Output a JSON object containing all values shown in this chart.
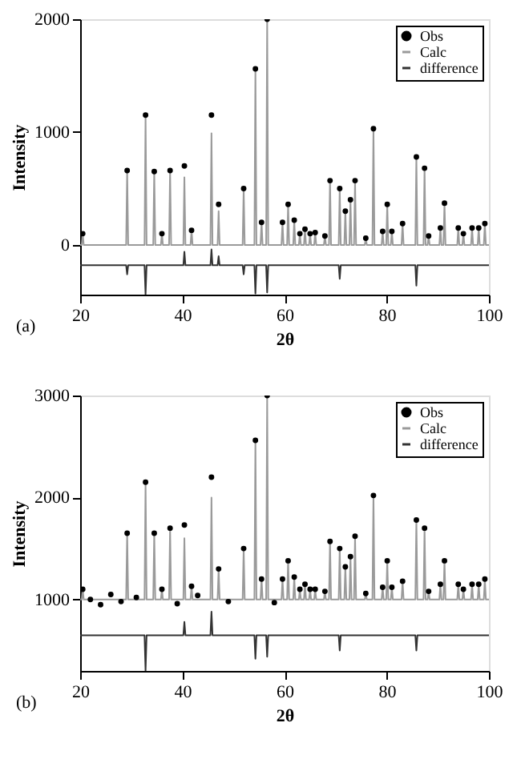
{
  "chart_data": [
    {
      "type": "line",
      "xlabel": "2θ",
      "ylabel": "Intensity",
      "annotations": [
        "(a)"
      ],
      "xlim": [
        20,
        100
      ],
      "xticks": [
        20,
        40,
        60,
        80,
        100
      ],
      "ylim": [
        -440,
        2000
      ],
      "yticks": [
        0,
        1000,
        2000
      ],
      "grid": false,
      "legend": "top right",
      "series": [
        {
          "name": "Obs",
          "type": "scatter",
          "marker": "circle",
          "color": "#000000",
          "x": [
            20.5,
            29.2,
            32.8,
            34.5,
            36,
            37.6,
            40.4,
            41.8,
            45.7,
            47.1,
            52,
            54.3,
            55.5,
            56.6,
            59.6,
            60.7,
            61.9,
            63,
            64,
            65,
            66,
            67.9,
            68.9,
            70.8,
            71.9,
            72.9,
            73.8,
            75.9,
            77.4,
            79.2,
            80.1,
            81,
            83.1,
            85.8,
            87.4,
            88.2,
            90.5,
            91.3,
            94,
            95,
            96.7,
            98,
            99.2
          ],
          "values": [
            100,
            660,
            1150,
            650,
            100,
            660,
            700,
            130,
            1150,
            360,
            500,
            1560,
            200,
            2000,
            200,
            360,
            220,
            100,
            140,
            100,
            110,
            80,
            570,
            500,
            300,
            400,
            570,
            60,
            1030,
            120,
            360,
            120,
            190,
            780,
            680,
            80,
            150,
            370,
            150,
            100,
            150,
            150,
            190
          ]
        },
        {
          "name": "Calc",
          "type": "line",
          "color": "#9a9a9a",
          "x": [
            20,
            20.3,
            20.5,
            20.7,
            29.0,
            29.2,
            29.4,
            32.6,
            32.8,
            33.0,
            34.3,
            34.5,
            34.7,
            35.8,
            36,
            36.2,
            37.4,
            37.6,
            37.8,
            40.2,
            40.4,
            40.6,
            41.6,
            41.8,
            42.0,
            45.5,
            45.7,
            45.9,
            46.9,
            47.1,
            47.3,
            51.8,
            52,
            52.2,
            54.1,
            54.3,
            54.5,
            55.3,
            55.5,
            55.7,
            56.4,
            56.6,
            56.8,
            59.4,
            59.6,
            59.8,
            60.5,
            60.7,
            60.9,
            61.7,
            61.9,
            62.1,
            62.8,
            63,
            63.2,
            63.8,
            64,
            64.2,
            64.8,
            65,
            65.2,
            65.8,
            66,
            66.2,
            67.7,
            67.9,
            68.1,
            68.7,
            68.9,
            69.1,
            70.6,
            70.8,
            71.0,
            71.7,
            71.9,
            72.1,
            72.7,
            72.9,
            73.1,
            73.6,
            73.8,
            74.0,
            75.7,
            75.9,
            76.1,
            77.2,
            77.4,
            77.6,
            79.0,
            79.2,
            79.4,
            79.9,
            80.1,
            80.3,
            80.8,
            81,
            81.2,
            82.9,
            83.1,
            83.3,
            85.6,
            85.8,
            86.0,
            87.2,
            87.4,
            87.6,
            88.0,
            88.2,
            88.4,
            90.3,
            90.5,
            90.7,
            91.1,
            91.3,
            91.5,
            93.8,
            94,
            94.2,
            94.8,
            95,
            95.2,
            96.5,
            96.7,
            96.9,
            97.8,
            98,
            98.2,
            99.0,
            99.2,
            99.4,
            100
          ],
          "values": [
            0,
            0,
            100,
            0,
            0,
            660,
            0,
            0,
            1150,
            0,
            0,
            650,
            0,
            0,
            100,
            0,
            0,
            660,
            0,
            0,
            600,
            0,
            0,
            130,
            0,
            0,
            990,
            0,
            0,
            300,
            0,
            0,
            500,
            0,
            0,
            1560,
            0,
            0,
            200,
            0,
            0,
            2000,
            0,
            0,
            200,
            0,
            0,
            360,
            0,
            0,
            220,
            0,
            0,
            100,
            0,
            0,
            140,
            0,
            0,
            100,
            0,
            0,
            110,
            0,
            0,
            80,
            0,
            0,
            570,
            0,
            0,
            500,
            0,
            0,
            300,
            0,
            0,
            400,
            0,
            0,
            570,
            0,
            0,
            60,
            0,
            0,
            1030,
            0,
            0,
            120,
            0,
            0,
            360,
            0,
            0,
            120,
            0,
            0,
            190,
            0,
            0,
            780,
            0,
            0,
            680,
            0,
            0,
            80,
            0,
            0,
            150,
            0,
            0,
            370,
            0,
            0,
            150,
            0,
            0,
            100,
            0,
            0,
            150,
            0,
            0,
            150,
            0,
            0,
            190,
            0,
            0
          ]
        },
        {
          "name": "difference",
          "type": "line",
          "color": "#333333",
          "x": [
            20,
            29.0,
            29.2,
            29.4,
            32.6,
            32.8,
            33.0,
            40.2,
            40.4,
            40.6,
            45.5,
            45.7,
            45.9,
            46.9,
            47.1,
            47.3,
            51.8,
            52,
            52.2,
            54.1,
            54.3,
            54.5,
            56.4,
            56.6,
            56.8,
            70.6,
            70.8,
            71.0,
            85.6,
            85.8,
            86.0,
            100
          ],
          "values": [
            -180,
            -180,
            -260,
            -180,
            -180,
            -440,
            -180,
            -180,
            -60,
            -180,
            -180,
            -40,
            -180,
            -180,
            -100,
            -180,
            -180,
            -260,
            -180,
            -180,
            -430,
            -180,
            -180,
            -420,
            -180,
            -180,
            -300,
            -180,
            -180,
            -360,
            -180,
            -180
          ]
        }
      ]
    },
    {
      "type": "line",
      "xlabel": "2θ",
      "ylabel": "Intensity",
      "annotations": [
        "(b)"
      ],
      "xlim": [
        20,
        100
      ],
      "xticks": [
        20,
        40,
        60,
        80,
        100
      ],
      "ylim": [
        300,
        3000
      ],
      "yticks": [
        1000,
        2000,
        3000
      ],
      "grid": false,
      "legend": "top right",
      "series": [
        {
          "name": "Obs",
          "type": "scatter",
          "marker": "circle",
          "color": "#000000",
          "x": [
            20.5,
            22,
            24,
            26,
            28,
            29.2,
            31,
            32.8,
            34.5,
            36,
            37.6,
            39,
            40.4,
            41.8,
            43,
            45.7,
            47.1,
            49,
            52,
            54.3,
            55.5,
            56.6,
            58,
            59.6,
            60.7,
            61.9,
            63,
            64,
            65,
            66,
            67.9,
            68.9,
            70.8,
            71.9,
            72.9,
            73.8,
            75.9,
            77.4,
            79.2,
            80.1,
            81,
            83.1,
            85.8,
            87.4,
            88.2,
            90.5,
            91.3,
            94,
            95,
            96.7,
            98,
            99.2
          ],
          "values": [
            1100,
            1000,
            950,
            1050,
            980,
            1650,
            1020,
            2150,
            1650,
            1100,
            1700,
            960,
            1730,
            1130,
            1040,
            2200,
            1300,
            980,
            1500,
            2560,
            1200,
            3000,
            970,
            1200,
            1380,
            1220,
            1100,
            1150,
            1100,
            1100,
            1080,
            1570,
            1500,
            1320,
            1420,
            1620,
            1060,
            2020,
            1120,
            1380,
            1120,
            1180,
            1780,
            1700,
            1080,
            1150,
            1380,
            1150,
            1100,
            1150,
            1150,
            1200
          ]
        },
        {
          "name": "Calc",
          "type": "line",
          "color": "#9a9a9a",
          "x": [
            20,
            20.3,
            20.5,
            20.7,
            29.0,
            29.2,
            29.4,
            32.6,
            32.8,
            33.0,
            34.3,
            34.5,
            34.7,
            35.8,
            36,
            36.2,
            37.4,
            37.6,
            37.8,
            40.2,
            40.4,
            40.6,
            41.6,
            41.8,
            42.0,
            45.5,
            45.7,
            45.9,
            46.9,
            47.1,
            47.3,
            51.8,
            52,
            52.2,
            54.1,
            54.3,
            54.5,
            55.3,
            55.5,
            55.7,
            56.4,
            56.6,
            56.8,
            59.4,
            59.6,
            59.8,
            60.5,
            60.7,
            60.9,
            61.7,
            61.9,
            62.1,
            62.8,
            63,
            63.2,
            63.8,
            64,
            64.2,
            64.8,
            65,
            65.2,
            65.8,
            66,
            66.2,
            67.7,
            67.9,
            68.1,
            68.7,
            68.9,
            69.1,
            70.6,
            70.8,
            71.0,
            71.7,
            71.9,
            72.1,
            72.7,
            72.9,
            73.1,
            73.6,
            73.8,
            74.0,
            75.7,
            75.9,
            76.1,
            77.2,
            77.4,
            77.6,
            79.0,
            79.2,
            79.4,
            79.9,
            80.1,
            80.3,
            80.8,
            81,
            81.2,
            82.9,
            83.1,
            83.3,
            85.6,
            85.8,
            86.0,
            87.2,
            87.4,
            87.6,
            88.0,
            88.2,
            88.4,
            90.3,
            90.5,
            90.7,
            91.1,
            91.3,
            91.5,
            93.8,
            94,
            94.2,
            94.8,
            95,
            95.2,
            96.5,
            96.7,
            96.9,
            97.8,
            98,
            98.2,
            99.0,
            99.2,
            99.4,
            100
          ],
          "values": [
            1000,
            1000,
            1100,
            1000,
            1000,
            1650,
            1000,
            1000,
            2150,
            1000,
            1000,
            1650,
            1000,
            1000,
            1100,
            1000,
            1000,
            1700,
            1000,
            1000,
            1600,
            1000,
            1000,
            1130,
            1000,
            1000,
            2000,
            1000,
            1000,
            1300,
            1000,
            1000,
            1500,
            1000,
            1000,
            2560,
            1000,
            1000,
            1200,
            1000,
            1000,
            3000,
            1000,
            1000,
            1200,
            1000,
            1000,
            1380,
            1000,
            1000,
            1220,
            1000,
            1000,
            1100,
            1000,
            1000,
            1150,
            1000,
            1000,
            1100,
            1000,
            1000,
            1100,
            1000,
            1000,
            1080,
            1000,
            1000,
            1570,
            1000,
            1000,
            1500,
            1000,
            1000,
            1320,
            1000,
            1000,
            1420,
            1000,
            1000,
            1620,
            1000,
            1000,
            1060,
            1000,
            1000,
            2020,
            1000,
            1000,
            1120,
            1000,
            1000,
            1380,
            1000,
            1000,
            1120,
            1000,
            1000,
            1180,
            1000,
            1000,
            1780,
            1000,
            1000,
            1700,
            1000,
            1000,
            1080,
            1000,
            1000,
            1150,
            1000,
            1000,
            1380,
            1000,
            1000,
            1150,
            1000,
            1000,
            1100,
            1000,
            1000,
            1150,
            1000,
            1000,
            1150,
            1000,
            1000,
            1200,
            1000,
            1000
          ]
        },
        {
          "name": "difference",
          "type": "line",
          "color": "#333333",
          "x": [
            20,
            32.6,
            32.8,
            33.0,
            40.2,
            40.4,
            40.6,
            45.5,
            45.7,
            45.9,
            54.1,
            54.3,
            54.5,
            56.4,
            56.6,
            56.8,
            70.6,
            70.8,
            71.0,
            85.6,
            85.8,
            86.0,
            100
          ],
          "values": [
            650,
            650,
            300,
            650,
            650,
            780,
            650,
            650,
            880,
            650,
            650,
            420,
            650,
            650,
            440,
            650,
            650,
            500,
            650,
            650,
            500,
            650,
            650
          ]
        }
      ]
    }
  ]
}
